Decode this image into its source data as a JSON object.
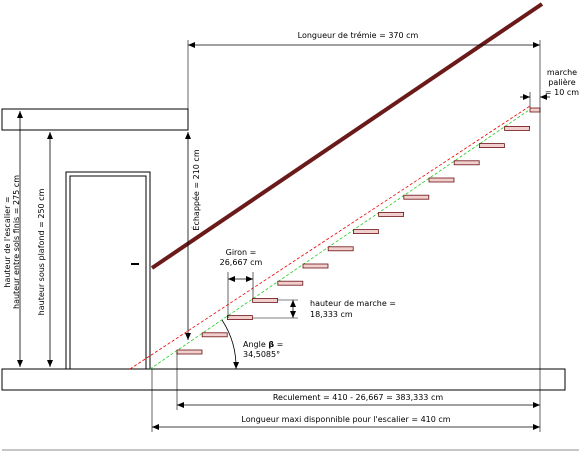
{
  "labels": {
    "tremie": "Longueur de trémie = 370 cm",
    "palier": [
      "marche",
      "palière",
      "= 10 cm"
    ],
    "echappee": "Échappée = 210 cm",
    "hauteur_escalier": [
      "hauteur de l'escalier =",
      "hauteur entre sols finis = 275 cm"
    ],
    "hauteur_plafond": "hauteur sous plafond = 250 cm",
    "giron": [
      "Giron =",
      "26,667 cm"
    ],
    "hauteur_marche": [
      "hauteur de marche =",
      "18,333 cm"
    ],
    "angle": {
      "prefix": "Angle ",
      "symbol": "β",
      "suffix": " =",
      "value": "34,5085°"
    },
    "reculement": "Reculement = 410 - 26,667 = 383,333 cm",
    "longueur_maxi": "Longueur maxi  disponnible pour l'escalier = 410 cm"
  }
}
